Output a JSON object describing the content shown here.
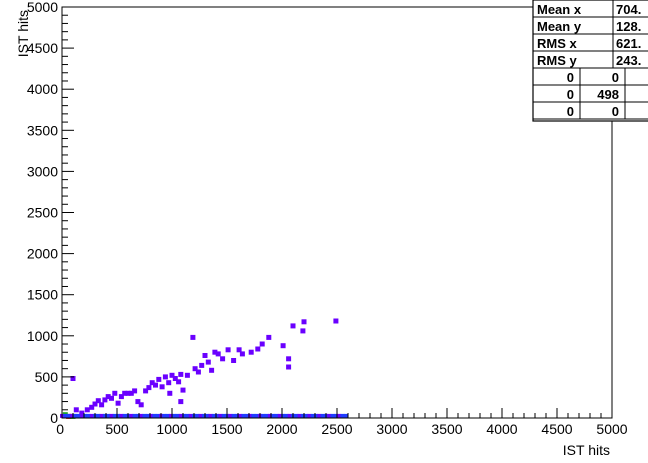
{
  "chart_data": {
    "type": "heatmap",
    "xlabel": "IST hits",
    "ylabel": "IST hits",
    "xlim": [
      0,
      5000
    ],
    "ylim": [
      0,
      5000
    ],
    "x_ticks": [
      "0",
      "500",
      "1000",
      "1500",
      "2000",
      "2500",
      "3000",
      "3500",
      "4000",
      "4500",
      "5000"
    ],
    "y_ticks": [
      "0",
      "500",
      "1000",
      "1500",
      "2000",
      "2500",
      "3000",
      "3500",
      "4000",
      "4500",
      "5000"
    ],
    "stats": [
      {
        "label": "Mean x",
        "value": "704."
      },
      {
        "label": "Mean y",
        "value": "128."
      },
      {
        "label": "RMS x",
        "value": "621."
      },
      {
        "label": "RMS y",
        "value": "243."
      }
    ],
    "stats_grid": [
      [
        "0",
        "0",
        ""
      ],
      [
        "0",
        "498",
        ""
      ],
      [
        "0",
        "0",
        ""
      ]
    ],
    "colors": {
      "high": "#6a00ff",
      "low": "#1f3cff",
      "peak": "#1faa1f",
      "hot": "#e0001f"
    },
    "cells": [
      {
        "x": 100,
        "y": 480,
        "level": "high"
      },
      {
        "x": 130,
        "y": 100,
        "level": "high"
      },
      {
        "x": 180,
        "y": 60,
        "level": "high"
      },
      {
        "x": 230,
        "y": 100,
        "level": "high"
      },
      {
        "x": 270,
        "y": 130,
        "level": "high"
      },
      {
        "x": 300,
        "y": 170,
        "level": "high"
      },
      {
        "x": 330,
        "y": 210,
        "level": "high"
      },
      {
        "x": 360,
        "y": 160,
        "level": "high"
      },
      {
        "x": 390,
        "y": 220,
        "level": "high"
      },
      {
        "x": 420,
        "y": 260,
        "level": "high"
      },
      {
        "x": 450,
        "y": 240,
        "level": "high"
      },
      {
        "x": 480,
        "y": 300,
        "level": "high"
      },
      {
        "x": 510,
        "y": 180,
        "level": "high"
      },
      {
        "x": 540,
        "y": 260,
        "level": "high"
      },
      {
        "x": 570,
        "y": 300,
        "level": "high"
      },
      {
        "x": 600,
        "y": 300,
        "level": "high"
      },
      {
        "x": 630,
        "y": 300,
        "level": "high"
      },
      {
        "x": 660,
        "y": 330,
        "level": "high"
      },
      {
        "x": 690,
        "y": 200,
        "level": "high"
      },
      {
        "x": 720,
        "y": 160,
        "level": "high"
      },
      {
        "x": 760,
        "y": 330,
        "level": "high"
      },
      {
        "x": 790,
        "y": 370,
        "level": "high"
      },
      {
        "x": 820,
        "y": 430,
        "level": "high"
      },
      {
        "x": 850,
        "y": 400,
        "level": "high"
      },
      {
        "x": 880,
        "y": 470,
        "level": "high"
      },
      {
        "x": 910,
        "y": 380,
        "level": "high"
      },
      {
        "x": 940,
        "y": 500,
        "level": "high"
      },
      {
        "x": 970,
        "y": 430,
        "level": "high"
      },
      {
        "x": 1000,
        "y": 520,
        "level": "high"
      },
      {
        "x": 1030,
        "y": 480,
        "level": "high"
      },
      {
        "x": 1060,
        "y": 440,
        "level": "high"
      },
      {
        "x": 1080,
        "y": 530,
        "level": "high"
      },
      {
        "x": 980,
        "y": 300,
        "level": "high"
      },
      {
        "x": 1100,
        "y": 340,
        "level": "high"
      },
      {
        "x": 1080,
        "y": 200,
        "level": "high"
      },
      {
        "x": 1140,
        "y": 520,
        "level": "high"
      },
      {
        "x": 1190,
        "y": 980,
        "level": "high"
      },
      {
        "x": 1210,
        "y": 600,
        "level": "high"
      },
      {
        "x": 1240,
        "y": 560,
        "level": "high"
      },
      {
        "x": 1270,
        "y": 640,
        "level": "high"
      },
      {
        "x": 1300,
        "y": 760,
        "level": "high"
      },
      {
        "x": 1330,
        "y": 680,
        "level": "high"
      },
      {
        "x": 1360,
        "y": 580,
        "level": "high"
      },
      {
        "x": 1390,
        "y": 800,
        "level": "high"
      },
      {
        "x": 1420,
        "y": 780,
        "level": "high"
      },
      {
        "x": 1460,
        "y": 720,
        "level": "high"
      },
      {
        "x": 1510,
        "y": 830,
        "level": "high"
      },
      {
        "x": 1560,
        "y": 700,
        "level": "high"
      },
      {
        "x": 1610,
        "y": 830,
        "level": "high"
      },
      {
        "x": 1640,
        "y": 780,
        "level": "high"
      },
      {
        "x": 1720,
        "y": 800,
        "level": "high"
      },
      {
        "x": 1780,
        "y": 840,
        "level": "high"
      },
      {
        "x": 1820,
        "y": 900,
        "level": "high"
      },
      {
        "x": 1880,
        "y": 980,
        "level": "high"
      },
      {
        "x": 2010,
        "y": 880,
        "level": "high"
      },
      {
        "x": 2060,
        "y": 720,
        "level": "high"
      },
      {
        "x": 2060,
        "y": 620,
        "level": "high"
      },
      {
        "x": 2100,
        "y": 1120,
        "level": "high"
      },
      {
        "x": 2190,
        "y": 1060,
        "level": "high"
      },
      {
        "x": 2200,
        "y": 1170,
        "level": "high"
      },
      {
        "x": 2490,
        "y": 1180,
        "level": "high"
      },
      {
        "x": 60,
        "y": 20,
        "level": "hot"
      },
      {
        "x": 30,
        "y": 40,
        "level": "peak"
      },
      {
        "x": 100,
        "y": 20,
        "level": "peak"
      }
    ],
    "baseline": {
      "x_start": 0,
      "x_end": 2600,
      "y": 20,
      "level": "low"
    }
  }
}
